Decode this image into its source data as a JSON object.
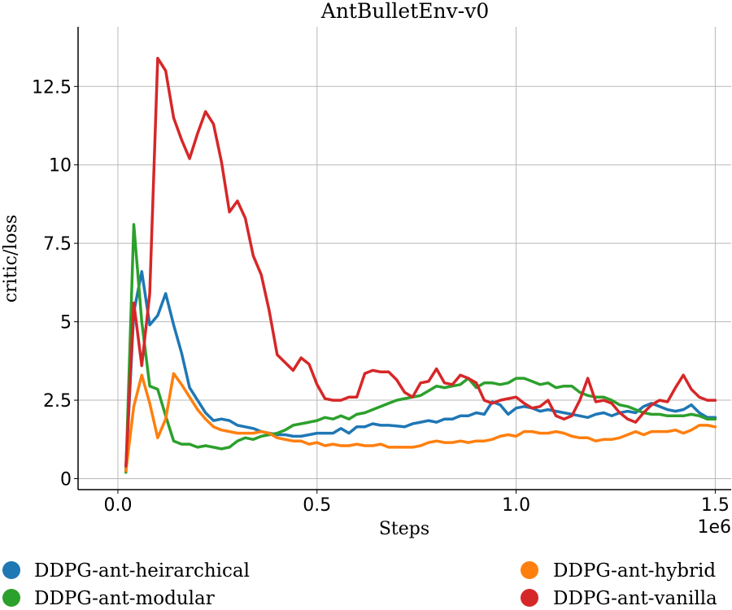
{
  "chart_data": {
    "type": "line",
    "title": "AntBulletEnv-v0",
    "xlabel": "Steps",
    "ylabel": "critic/loss",
    "x_offset_label": "1e6",
    "xlim": [
      -0.1,
      1.54
    ],
    "ylim": [
      -0.35,
      14.4
    ],
    "x_ticks": [
      0.0,
      0.5,
      1.0,
      1.5
    ],
    "x_tick_labels": [
      "0.0",
      "0.5",
      "1.0",
      "1.5"
    ],
    "y_ticks": [
      0,
      2.5,
      5,
      7.5,
      10,
      12.5
    ],
    "y_tick_labels": [
      "0",
      "2.5",
      "5",
      "7.5",
      "10",
      "12.5"
    ],
    "grid": true,
    "legend_position": "bottom",
    "x": [
      0.02,
      0.04,
      0.06,
      0.08,
      0.1,
      0.12,
      0.14,
      0.16,
      0.18,
      0.2,
      0.22,
      0.24,
      0.26,
      0.28,
      0.3,
      0.32,
      0.34,
      0.36,
      0.38,
      0.4,
      0.42,
      0.44,
      0.46,
      0.48,
      0.5,
      0.52,
      0.54,
      0.56,
      0.58,
      0.6,
      0.62,
      0.64,
      0.66,
      0.68,
      0.7,
      0.72,
      0.74,
      0.76,
      0.78,
      0.8,
      0.82,
      0.84,
      0.86,
      0.88,
      0.9,
      0.92,
      0.94,
      0.96,
      0.98,
      1.0,
      1.02,
      1.04,
      1.06,
      1.08,
      1.1,
      1.12,
      1.14,
      1.16,
      1.18,
      1.2,
      1.22,
      1.24,
      1.26,
      1.28,
      1.3,
      1.32,
      1.34,
      1.36,
      1.38,
      1.4,
      1.42,
      1.44,
      1.46,
      1.48,
      1.5
    ],
    "series": [
      {
        "name": "DDPG-ant-heirarchical",
        "color": "#1f77b4",
        "values": [
          0.3,
          5.3,
          6.6,
          4.9,
          5.2,
          5.9,
          4.9,
          4.0,
          2.9,
          2.5,
          2.1,
          1.85,
          1.9,
          1.85,
          1.7,
          1.65,
          1.6,
          1.5,
          1.45,
          1.4,
          1.4,
          1.35,
          1.35,
          1.4,
          1.45,
          1.45,
          1.45,
          1.6,
          1.45,
          1.65,
          1.65,
          1.75,
          1.7,
          1.7,
          1.68,
          1.65,
          1.75,
          1.8,
          1.85,
          1.8,
          1.9,
          1.9,
          2.0,
          2.0,
          2.1,
          2.05,
          2.45,
          2.35,
          2.05,
          2.25,
          2.3,
          2.25,
          2.15,
          2.2,
          2.15,
          2.1,
          2.05,
          2.0,
          1.95,
          2.05,
          2.1,
          2.0,
          2.1,
          2.15,
          2.1,
          2.3,
          2.4,
          2.3,
          2.2,
          2.15,
          2.2,
          2.35,
          2.1,
          1.95,
          1.95
        ]
      },
      {
        "name": "DDPG-ant-modular",
        "color": "#2ca02c",
        "values": [
          0.2,
          8.1,
          5.0,
          2.95,
          2.85,
          2.0,
          1.2,
          1.1,
          1.1,
          1.0,
          1.05,
          1.0,
          0.95,
          1.0,
          1.2,
          1.3,
          1.25,
          1.35,
          1.4,
          1.45,
          1.55,
          1.7,
          1.75,
          1.8,
          1.85,
          1.95,
          1.9,
          2.0,
          1.9,
          2.05,
          2.1,
          2.2,
          2.3,
          2.4,
          2.5,
          2.55,
          2.6,
          2.65,
          2.8,
          2.95,
          2.9,
          2.95,
          3.0,
          3.2,
          2.9,
          3.05,
          3.05,
          3.0,
          3.05,
          3.2,
          3.2,
          3.1,
          3.0,
          3.05,
          2.9,
          2.95,
          2.95,
          2.75,
          2.65,
          2.6,
          2.6,
          2.5,
          2.35,
          2.3,
          2.2,
          2.1,
          2.05,
          2.05,
          2.0,
          2.0,
          2.0,
          2.05,
          2.0,
          1.9,
          1.9
        ]
      },
      {
        "name": "DDPG-ant-hybrid",
        "color": "#ff7f0e",
        "values": [
          0.25,
          2.3,
          3.3,
          2.4,
          1.3,
          1.9,
          3.35,
          3.0,
          2.6,
          2.2,
          1.9,
          1.65,
          1.55,
          1.5,
          1.45,
          1.45,
          1.45,
          1.5,
          1.45,
          1.3,
          1.25,
          1.2,
          1.2,
          1.1,
          1.15,
          1.05,
          1.1,
          1.05,
          1.05,
          1.1,
          1.05,
          1.05,
          1.1,
          1.0,
          1.0,
          1.0,
          1.0,
          1.05,
          1.15,
          1.2,
          1.15,
          1.15,
          1.2,
          1.15,
          1.2,
          1.2,
          1.25,
          1.35,
          1.4,
          1.35,
          1.5,
          1.5,
          1.45,
          1.45,
          1.5,
          1.45,
          1.35,
          1.3,
          1.3,
          1.2,
          1.25,
          1.25,
          1.3,
          1.4,
          1.5,
          1.4,
          1.5,
          1.5,
          1.5,
          1.55,
          1.45,
          1.55,
          1.7,
          1.7,
          1.65
        ]
      },
      {
        "name": "DDPG-ant-vanilla",
        "color": "#d62728",
        "values": [
          0.4,
          5.6,
          3.6,
          5.9,
          13.4,
          13.0,
          11.5,
          10.8,
          10.2,
          11.0,
          11.7,
          11.3,
          10.1,
          8.5,
          8.85,
          8.3,
          7.1,
          6.5,
          5.35,
          3.95,
          3.7,
          3.45,
          3.85,
          3.65,
          3.0,
          2.55,
          2.5,
          2.5,
          2.6,
          2.6,
          3.35,
          3.45,
          3.4,
          3.4,
          3.15,
          2.75,
          2.6,
          3.05,
          3.1,
          3.5,
          3.05,
          3.0,
          3.3,
          3.2,
          3.05,
          2.5,
          2.4,
          2.5,
          2.55,
          2.6,
          2.4,
          2.25,
          2.3,
          2.5,
          2.0,
          1.9,
          2.0,
          2.5,
          3.2,
          2.45,
          2.5,
          2.4,
          2.1,
          1.9,
          1.8,
          2.1,
          2.35,
          2.5,
          2.45,
          2.9,
          3.3,
          2.85,
          2.6,
          2.5,
          2.5
        ]
      }
    ],
    "legend": [
      {
        "name": "DDPG-ant-heirarchical",
        "color": "#1f77b4"
      },
      {
        "name": "DDPG-ant-hybrid",
        "color": "#ff7f0e"
      },
      {
        "name": "DDPG-ant-modular",
        "color": "#2ca02c"
      },
      {
        "name": "DDPG-ant-vanilla",
        "color": "#d62728"
      }
    ]
  }
}
